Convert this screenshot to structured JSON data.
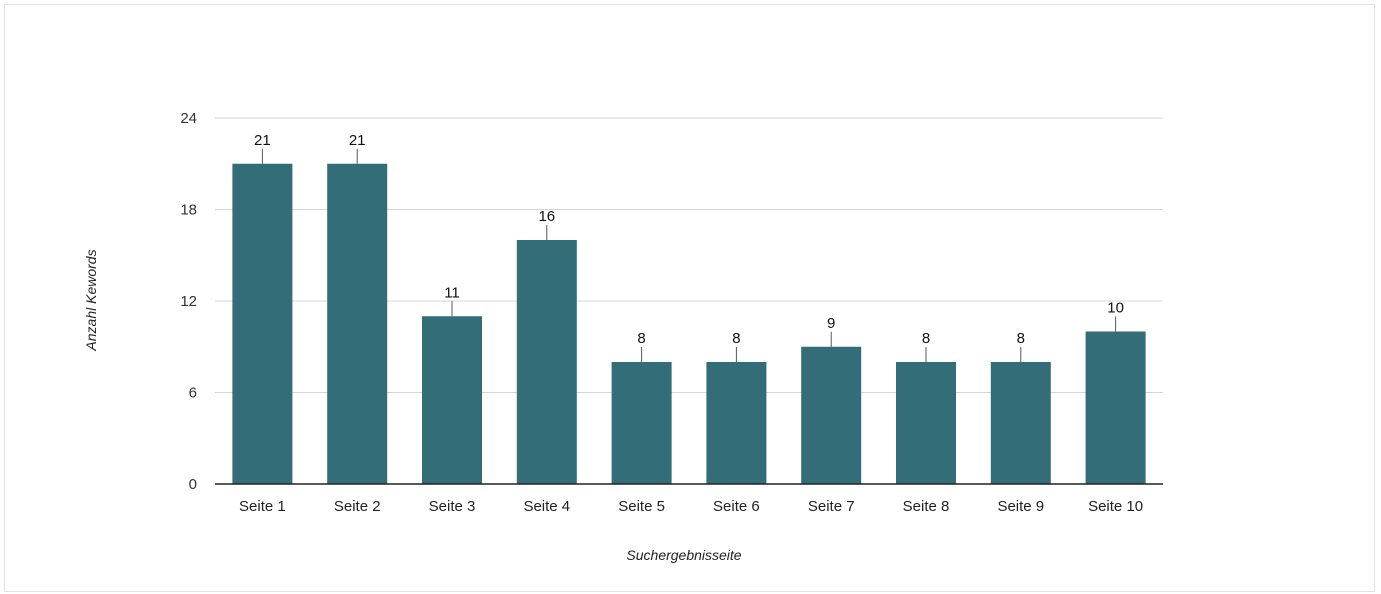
{
  "chart_data": {
    "type": "bar",
    "categories": [
      "Seite 1",
      "Seite 2",
      "Seite 3",
      "Seite 4",
      "Seite 5",
      "Seite 6",
      "Seite 7",
      "Seite 8",
      "Seite 9",
      "Seite 10"
    ],
    "values": [
      21,
      21,
      11,
      16,
      8,
      8,
      9,
      8,
      8,
      10
    ],
    "title": "",
    "xlabel": "Suchergebnisseite",
    "ylabel": "Anzahl Kewords",
    "ylim": [
      0,
      24
    ],
    "yticks": [
      0,
      6,
      12,
      18,
      24
    ],
    "grid": true,
    "data_labels": true,
    "colors": {
      "bar": "#336e78",
      "grid": "#d4d4d4",
      "axis": "#222222",
      "leader": "#555555"
    }
  }
}
